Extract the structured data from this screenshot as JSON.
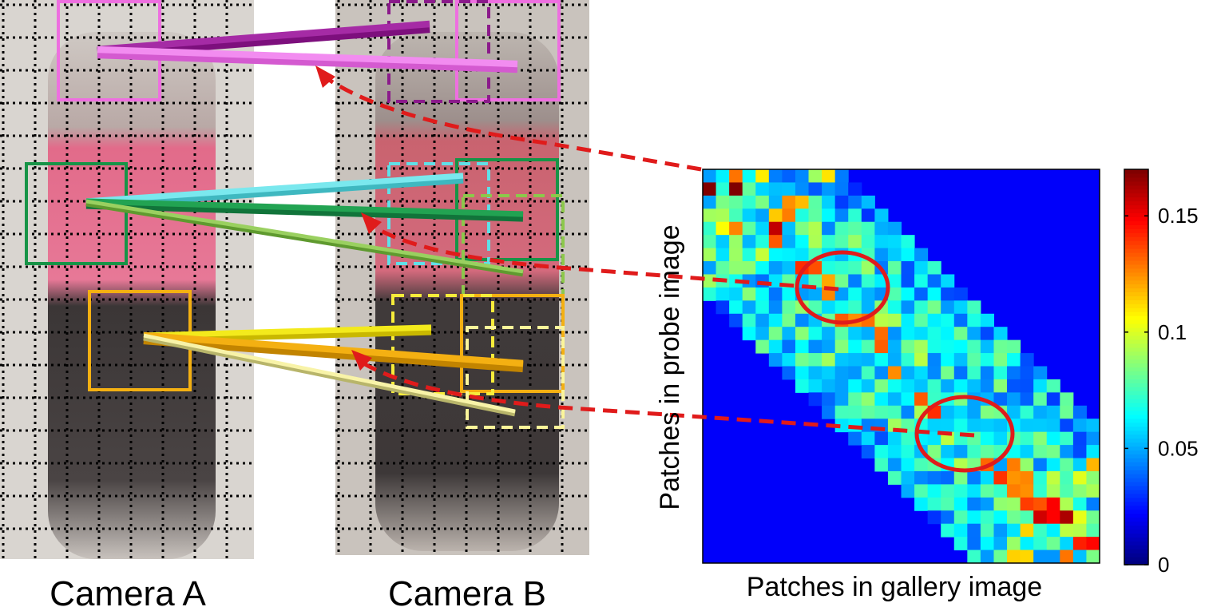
{
  "camera_a": {
    "label": "Camera A"
  },
  "camera_b": {
    "label": "Camera B"
  },
  "heatmap": {
    "x_label": "Patches in gallery image",
    "y_label": "Patches in probe image",
    "colorbar": {
      "clim": [
        0,
        0.17
      ],
      "ticks": [
        0,
        0.05,
        0.1,
        0.15
      ]
    }
  }
}
